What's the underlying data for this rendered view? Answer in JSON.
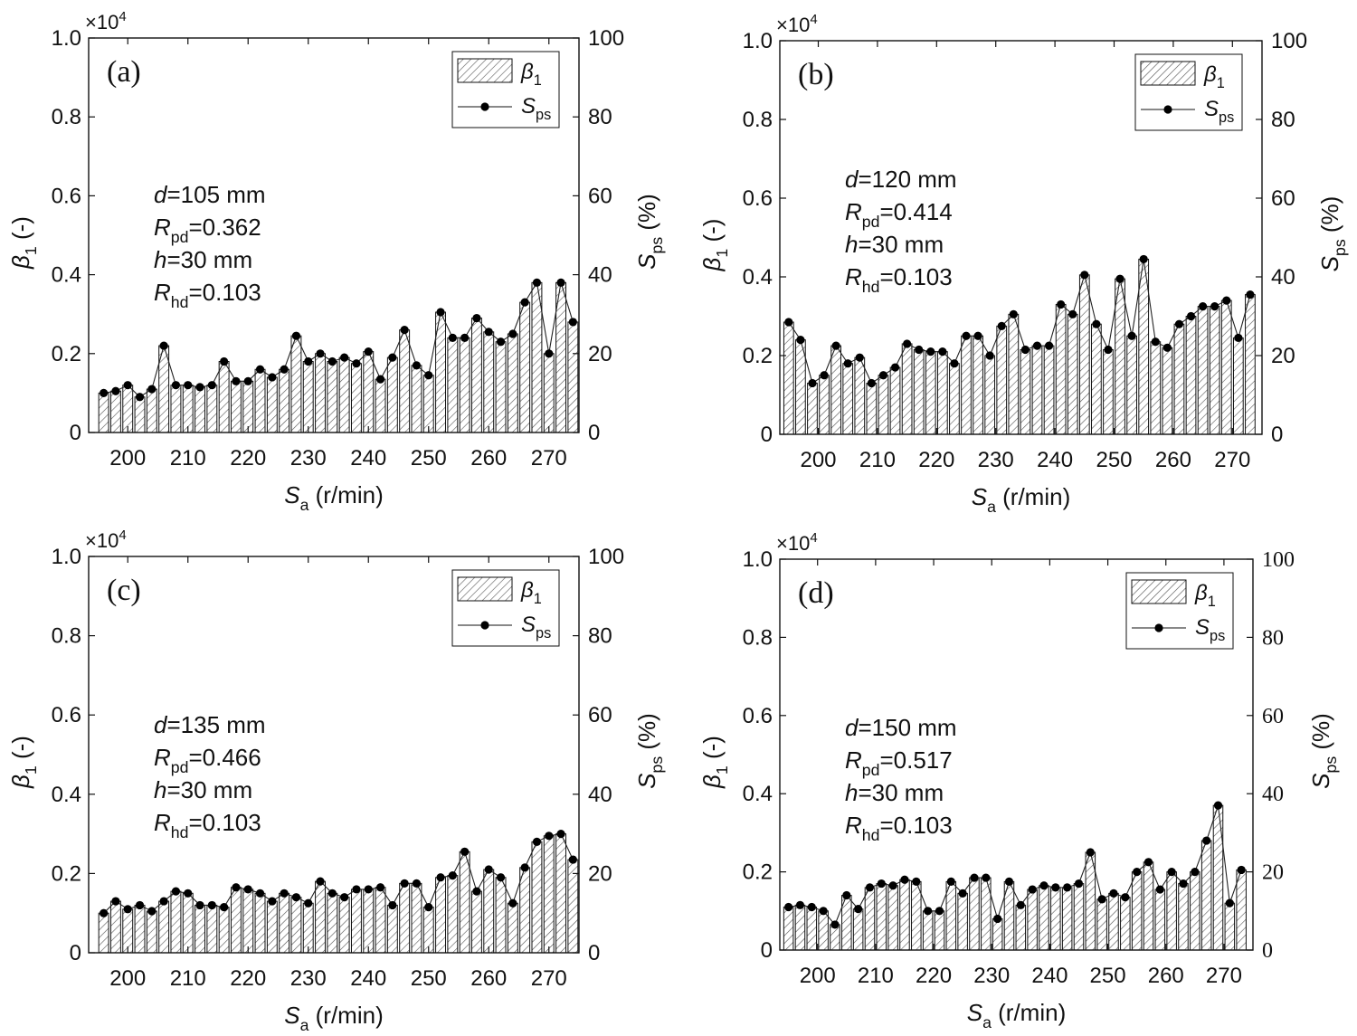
{
  "chart_data": [
    {
      "type": "bar+line",
      "panel_label": "(a)",
      "x_tick_labels": [
        "200",
        "210",
        "220",
        "230",
        "240",
        "250",
        "260",
        "270"
      ],
      "x_ticks": [
        200,
        210,
        220,
        230,
        240,
        250,
        260,
        270
      ],
      "xlim": [
        193.5,
        275
      ],
      "xlabel": {
        "main": "S",
        "sub": "a",
        "rest": " (r/min)"
      },
      "ylabel_left": {
        "main": "β",
        "sub": "1",
        "rest": " (-)"
      },
      "ylabel_right": {
        "main": "S",
        "sub": "ps",
        "rest": " (%)"
      },
      "y_left_ticks": [
        0,
        0.2,
        0.4,
        0.6,
        0.8,
        1.0
      ],
      "y_left_tick_labels": [
        "0",
        "0.2",
        "0.4",
        "0.6",
        "0.8",
        "1.0"
      ],
      "y_right_ticks": [
        0,
        20,
        40,
        60,
        80,
        100
      ],
      "y_right_tick_labels": [
        "0",
        "20",
        "40",
        "60",
        "80",
        "100"
      ],
      "ylim_left": [
        0,
        1.0
      ],
      "ylim_right": [
        0,
        100
      ],
      "y_left_multiplier": "×10",
      "y_left_exponent": "4",
      "legend": [
        {
          "main": "β",
          "sub": "1"
        },
        {
          "main": "S",
          "sub": "ps"
        }
      ],
      "annotation": [
        {
          "main": "d",
          "sub": "",
          "rest": "=105 mm"
        },
        {
          "main": "R",
          "sub": "pd",
          "rest": "=0.362"
        },
        {
          "main": "h",
          "sub": "",
          "rest": "=30 mm"
        },
        {
          "main": "R",
          "sub": "hd",
          "rest": "=0.103"
        }
      ],
      "x": [
        196,
        198,
        200,
        202,
        204,
        206,
        208,
        210,
        212,
        214,
        216,
        218,
        220,
        222,
        224,
        226,
        228,
        230,
        232,
        234,
        236,
        238,
        240,
        242,
        244,
        246,
        248,
        250,
        252,
        254,
        256,
        258,
        260,
        262,
        264,
        266,
        268,
        270,
        272,
        274
      ],
      "series": [
        {
          "name": "S_ps",
          "unit": "%",
          "values": [
            10,
            10.5,
            12,
            9,
            11,
            22,
            12,
            12,
            11.5,
            12,
            18,
            13,
            13,
            16,
            14,
            16,
            24.5,
            18,
            20,
            18,
            19,
            17.5,
            20.5,
            13.5,
            19,
            26,
            17,
            14.5,
            30.5,
            24,
            24,
            29,
            25.5,
            23,
            25,
            33,
            38,
            20,
            38,
            28
          ]
        },
        {
          "name": "beta_1",
          "unit": "×10^4",
          "values": [
            0.1,
            0.105,
            0.12,
            0.09,
            0.11,
            0.22,
            0.12,
            0.12,
            0.115,
            0.12,
            0.18,
            0.13,
            0.13,
            0.16,
            0.14,
            0.16,
            0.245,
            0.18,
            0.2,
            0.18,
            0.19,
            0.175,
            0.205,
            0.135,
            0.19,
            0.26,
            0.17,
            0.145,
            0.305,
            0.24,
            0.24,
            0.29,
            0.255,
            0.23,
            0.25,
            0.33,
            0.38,
            0.2,
            0.38,
            0.28
          ]
        }
      ]
    },
    {
      "type": "bar+line",
      "panel_label": "(b)",
      "x_tick_labels": [
        "200",
        "210",
        "220",
        "230",
        "240",
        "250",
        "260",
        "270"
      ],
      "x_ticks": [
        200,
        210,
        220,
        230,
        240,
        250,
        260,
        270
      ],
      "xlim": [
        193.5,
        275
      ],
      "xlabel": {
        "main": "S",
        "sub": "a",
        "rest": " (r/min)"
      },
      "ylabel_left": {
        "main": "β",
        "sub": "1",
        "rest": " (-)"
      },
      "ylabel_right": {
        "main": "S",
        "sub": "ps",
        "rest": " (%)"
      },
      "y_left_ticks": [
        0,
        0.2,
        0.4,
        0.6,
        0.8,
        1.0
      ],
      "y_left_tick_labels": [
        "0",
        "0.2",
        "0.4",
        "0.6",
        "0.8",
        "1.0"
      ],
      "y_right_ticks": [
        0,
        20,
        40,
        60,
        80,
        100
      ],
      "y_right_tick_labels": [
        "0",
        "20",
        "40",
        "60",
        "80",
        "100"
      ],
      "ylim_left": [
        0,
        1.0
      ],
      "ylim_right": [
        0,
        100
      ],
      "y_left_multiplier": "×10",
      "y_left_exponent": "4",
      "legend": [
        {
          "main": "β",
          "sub": "1"
        },
        {
          "main": "S",
          "sub": "ps"
        }
      ],
      "annotation": [
        {
          "main": "d",
          "sub": "",
          "rest": "=120 mm"
        },
        {
          "main": "R",
          "sub": "pd",
          "rest": "=0.414"
        },
        {
          "main": "h",
          "sub": "",
          "rest": "=30 mm"
        },
        {
          "main": "R",
          "sub": "hd",
          "rest": "=0.103"
        }
      ],
      "x": [
        195,
        197,
        199,
        201,
        203,
        205,
        207,
        209,
        211,
        213,
        215,
        217,
        219,
        221,
        223,
        225,
        227,
        229,
        231,
        233,
        235,
        237,
        239,
        241,
        243,
        245,
        247,
        249,
        251,
        253,
        255,
        257,
        259,
        261,
        263,
        265,
        267,
        269,
        271,
        273
      ],
      "series": [
        {
          "name": "S_ps",
          "unit": "%",
          "values": [
            28.5,
            24,
            13,
            15,
            22.5,
            18,
            19.5,
            13,
            15,
            17,
            23,
            21.5,
            21,
            21,
            18,
            25,
            25,
            20,
            27.5,
            30.5,
            21.5,
            22.5,
            22.5,
            33,
            30.5,
            40.5,
            28,
            21.5,
            39.5,
            25,
            44.5,
            23.5,
            22,
            28,
            30,
            32.5,
            32.5,
            34,
            24.5,
            35.5
          ]
        },
        {
          "name": "beta_1",
          "unit": "×10^4",
          "values": [
            0.285,
            0.24,
            0.13,
            0.15,
            0.225,
            0.18,
            0.195,
            0.13,
            0.15,
            0.17,
            0.23,
            0.215,
            0.21,
            0.21,
            0.18,
            0.25,
            0.25,
            0.2,
            0.275,
            0.305,
            0.215,
            0.225,
            0.225,
            0.33,
            0.305,
            0.405,
            0.28,
            0.215,
            0.395,
            0.25,
            0.445,
            0.235,
            0.22,
            0.28,
            0.3,
            0.325,
            0.325,
            0.34,
            0.245,
            0.355
          ]
        }
      ]
    },
    {
      "type": "bar+line",
      "panel_label": "(c)",
      "x_tick_labels": [
        "200",
        "210",
        "220",
        "230",
        "240",
        "250",
        "260",
        "270"
      ],
      "x_ticks": [
        200,
        210,
        220,
        230,
        240,
        250,
        260,
        270
      ],
      "xlim": [
        193.5,
        275
      ],
      "xlabel": {
        "main": "S",
        "sub": "a",
        "rest": " (r/min)"
      },
      "ylabel_left": {
        "main": "β",
        "sub": "1",
        "rest": " (-)"
      },
      "ylabel_right": {
        "main": "S",
        "sub": "ps",
        "rest": " (%)"
      },
      "y_left_ticks": [
        0,
        0.2,
        0.4,
        0.6,
        0.8,
        1.0
      ],
      "y_left_tick_labels": [
        "0",
        "0.2",
        "0.4",
        "0.6",
        "0.8",
        "1.0"
      ],
      "y_right_ticks": [
        0,
        20,
        40,
        60,
        80,
        100
      ],
      "y_right_tick_labels": [
        "0",
        "20",
        "40",
        "60",
        "80",
        "100"
      ],
      "ylim_left": [
        0,
        1.0
      ],
      "ylim_right": [
        0,
        100
      ],
      "y_left_multiplier": "×10",
      "y_left_exponent": "4",
      "legend": [
        {
          "main": "β",
          "sub": "1"
        },
        {
          "main": "S",
          "sub": "ps"
        }
      ],
      "annotation": [
        {
          "main": "d",
          "sub": "",
          "rest": "=135 mm"
        },
        {
          "main": "R",
          "sub": "pd",
          "rest": "=0.466"
        },
        {
          "main": "h",
          "sub": "",
          "rest": "=30 mm"
        },
        {
          "main": "R",
          "sub": "hd",
          "rest": "=0.103"
        }
      ],
      "x": [
        196,
        198,
        200,
        202,
        204,
        206,
        208,
        210,
        212,
        214,
        216,
        218,
        220,
        222,
        224,
        226,
        228,
        230,
        232,
        234,
        236,
        238,
        240,
        242,
        244,
        246,
        248,
        250,
        252,
        254,
        256,
        258,
        260,
        262,
        264,
        266,
        268,
        270,
        272,
        274
      ],
      "series": [
        {
          "name": "S_ps",
          "unit": "%",
          "values": [
            10,
            13,
            11,
            12,
            10.5,
            13,
            15.5,
            15,
            12,
            12,
            11.5,
            16.5,
            16,
            15,
            13,
            15,
            14,
            12.5,
            18,
            15,
            14,
            16,
            16,
            16.5,
            12,
            17.5,
            17.5,
            11.5,
            19,
            19.5,
            25.5,
            15.5,
            21,
            19,
            12.5,
            21.5,
            28,
            29.5,
            30,
            23.5
          ]
        },
        {
          "name": "beta_1",
          "unit": "×10^4",
          "values": [
            0.1,
            0.13,
            0.11,
            0.12,
            0.105,
            0.13,
            0.155,
            0.15,
            0.12,
            0.12,
            0.115,
            0.165,
            0.16,
            0.15,
            0.13,
            0.15,
            0.14,
            0.125,
            0.18,
            0.15,
            0.14,
            0.16,
            0.16,
            0.165,
            0.12,
            0.175,
            0.175,
            0.115,
            0.19,
            0.195,
            0.255,
            0.155,
            0.21,
            0.19,
            0.125,
            0.215,
            0.28,
            0.295,
            0.3,
            0.235
          ]
        }
      ]
    },
    {
      "type": "bar+line",
      "panel_label": "(d)",
      "x_tick_labels": [
        "200",
        "210",
        "220",
        "230",
        "240",
        "250",
        "260",
        "270"
      ],
      "x_ticks": [
        200,
        210,
        220,
        230,
        240,
        250,
        260,
        270
      ],
      "xlim": [
        193.5,
        275
      ],
      "xlabel": {
        "main": "S",
        "sub": "a",
        "rest": " (r/min)"
      },
      "ylabel_left": {
        "main": "β",
        "sub": "1",
        "rest": " (-)"
      },
      "ylabel_right": {
        "main": "S",
        "sub": "ps",
        "rest": " (%)"
      },
      "y_left_ticks": [
        0,
        0.2,
        0.4,
        0.6,
        0.8,
        1.0
      ],
      "y_left_tick_labels": [
        "0",
        "0.2",
        "0.4",
        "0.6",
        "0.8",
        "1.0"
      ],
      "y_right_ticks": [
        0,
        20,
        40,
        60,
        80,
        100
      ],
      "y_right_tick_labels": [
        "0",
        "20",
        "40",
        "60",
        "80",
        "100"
      ],
      "ylim_left": [
        0,
        1.0
      ],
      "ylim_right": [
        0,
        100
      ],
      "y_left_multiplier": "×10",
      "y_left_exponent": "4",
      "legend": [
        {
          "main": "β",
          "sub": "1"
        },
        {
          "main": "S",
          "sub": "ps"
        }
      ],
      "annotation": [
        {
          "main": "d",
          "sub": "",
          "rest": "=150 mm"
        },
        {
          "main": "R",
          "sub": "pd",
          "rest": "=0.517"
        },
        {
          "main": "h",
          "sub": "",
          "rest": "=30 mm"
        },
        {
          "main": "R",
          "sub": "hd",
          "rest": "=0.103"
        }
      ],
      "x": [
        195,
        197,
        199,
        201,
        203,
        205,
        207,
        209,
        211,
        213,
        215,
        217,
        219,
        221,
        223,
        225,
        227,
        229,
        231,
        233,
        235,
        237,
        239,
        241,
        243,
        245,
        247,
        249,
        251,
        253,
        255,
        257,
        259,
        261,
        263,
        265,
        267,
        269,
        271,
        273
      ],
      "series": [
        {
          "name": "S_ps",
          "unit": "%",
          "values": [
            11,
            11.5,
            11,
            10,
            6.5,
            14,
            10.5,
            16,
            17,
            16.5,
            18,
            17.5,
            10,
            10,
            17.5,
            14.5,
            18.5,
            18.5,
            8,
            17.5,
            11.5,
            15.5,
            16.5,
            16,
            16,
            17,
            25,
            13,
            14.5,
            13.5,
            20,
            22.5,
            15.5,
            20,
            17,
            20,
            28,
            37,
            12,
            20.5
          ]
        },
        {
          "name": "beta_1",
          "unit": "×10^4",
          "values": [
            0.11,
            0.115,
            0.11,
            0.1,
            0.065,
            0.14,
            0.105,
            0.16,
            0.17,
            0.165,
            0.18,
            0.175,
            0.1,
            0.1,
            0.175,
            0.145,
            0.185,
            0.185,
            0.08,
            0.175,
            0.115,
            0.155,
            0.165,
            0.16,
            0.16,
            0.17,
            0.25,
            0.13,
            0.145,
            0.135,
            0.2,
            0.225,
            0.155,
            0.2,
            0.17,
            0.2,
            0.28,
            0.37,
            0.12,
            0.205
          ]
        }
      ]
    }
  ]
}
